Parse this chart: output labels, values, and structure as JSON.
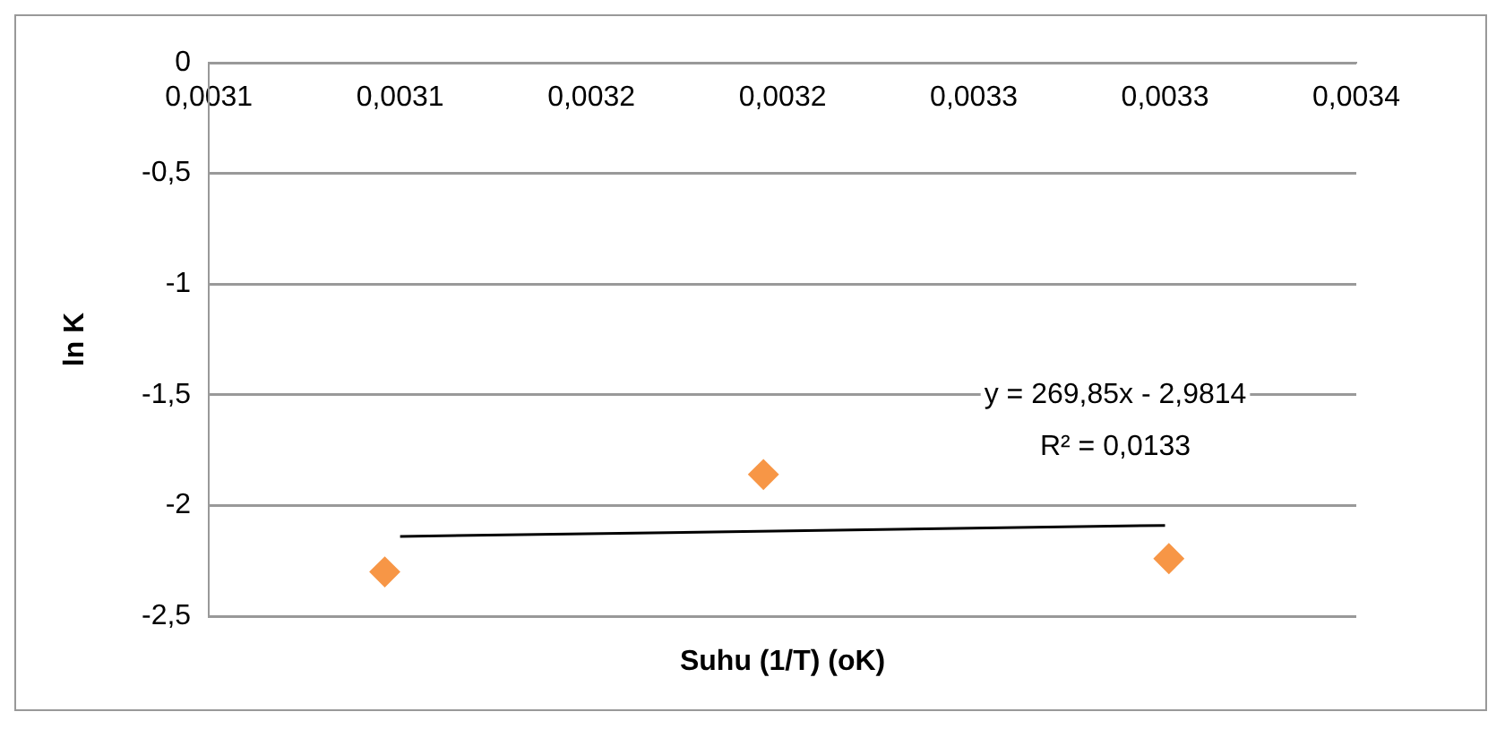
{
  "chart_data": {
    "type": "scatter",
    "xlabel": "Suhu (1/T) (oK)",
    "ylabel": "ln K",
    "xlim": [
      0.00305,
      0.00335
    ],
    "xticks": [
      {
        "value": 0.00305,
        "label": "0,0031"
      },
      {
        "value": 0.0031,
        "label": "0,0031"
      },
      {
        "value": 0.00315,
        "label": "0,0032"
      },
      {
        "value": 0.0032,
        "label": "0,0032"
      },
      {
        "value": 0.00325,
        "label": "0,0033"
      },
      {
        "value": 0.0033,
        "label": "0,0033"
      },
      {
        "value": 0.00335,
        "label": "0,0034"
      }
    ],
    "ylim": [
      -2.5,
      0
    ],
    "yticks": [
      {
        "value": -2.5,
        "label": "-2,5"
      },
      {
        "value": -2,
        "label": "-2"
      },
      {
        "value": -1.5,
        "label": "-1,5"
      },
      {
        "value": -1,
        "label": "-1"
      },
      {
        "value": -0.5,
        "label": "-0,5"
      },
      {
        "value": 0,
        "label": "0"
      }
    ],
    "grid": "y",
    "legend": false,
    "series": [
      {
        "color": "#f79646",
        "marker": "diamond",
        "x": [
          0.003096,
          0.003195,
          0.003301
        ],
        "values": [
          -2.3,
          -1.86,
          -2.24
        ]
      },
      {
        "type": "line",
        "color": "#000000",
        "marker": "none",
        "line_style": "solid",
        "x": [
          0.0031,
          0.0033
        ],
        "values": [
          -2.14,
          -2.09
        ]
      }
    ],
    "annotations": [
      "y = 269,85x - 2,9814",
      "R² = 0,0133"
    ]
  }
}
